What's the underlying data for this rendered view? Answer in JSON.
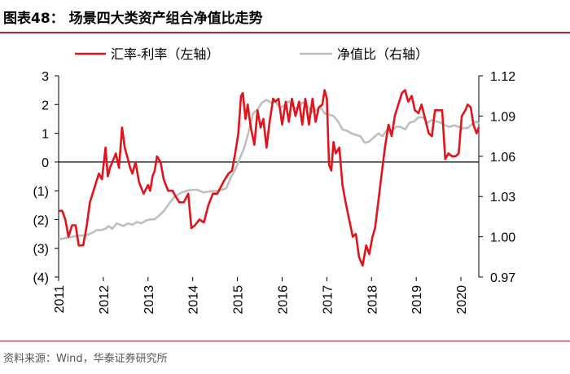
{
  "header": {
    "title": "图表48：  场景四大类资产组合净值比走势"
  },
  "footer": {
    "source": "资料来源：Wind，华泰证券研究所"
  },
  "colors": {
    "fx_series": "#e2131b",
    "nav_series": "#bfbfbf",
    "accent": "#b8232f"
  },
  "chart_data": {
    "type": "line",
    "title": "场景四大类资产组合净值比走势",
    "x_tick_labels": [
      "2011",
      "2012",
      "2013",
      "2014",
      "2015",
      "2016",
      "2017",
      "2018",
      "2019",
      "2020"
    ],
    "x_ticks": [
      2011,
      2012,
      2013,
      2014,
      2015,
      2016,
      2017,
      2018,
      2019,
      2020
    ],
    "xlim": [
      2011,
      2020.4
    ],
    "left_axis": {
      "ylim": [
        -4,
        3
      ],
      "ticks": [
        3,
        2,
        1,
        0,
        -1,
        -2,
        -3,
        -4
      ],
      "tick_labels": [
        "3",
        "2",
        "1",
        "0",
        "(1)",
        "(2)",
        "(3)",
        "(4)"
      ]
    },
    "right_axis": {
      "ylim": [
        0.97,
        1.12
      ],
      "ticks": [
        1.12,
        1.09,
        1.06,
        1.03,
        1.0,
        0.97
      ],
      "tick_labels": [
        "1.12",
        "1.09",
        "1.06",
        "1.03",
        "1.00",
        "0.97"
      ]
    },
    "series": [
      {
        "name": "汇率-利率（左轴）",
        "axis": "left",
        "x": [
          2011.0,
          2011.08,
          2011.15,
          2011.22,
          2011.3,
          2011.38,
          2011.45,
          2011.55,
          2011.63,
          2011.7,
          2011.8,
          2011.9,
          2011.97,
          2012.05,
          2012.1,
          2012.15,
          2012.2,
          2012.28,
          2012.35,
          2012.42,
          2012.48,
          2012.55,
          2012.6,
          2012.65,
          2012.72,
          2012.8,
          2012.9,
          2013.0,
          2013.05,
          2013.1,
          2013.15,
          2013.2,
          2013.28,
          2013.35,
          2013.45,
          2013.55,
          2013.62,
          2013.7,
          2013.8,
          2013.9,
          2013.97,
          2014.05,
          2014.15,
          2014.25,
          2014.35,
          2014.45,
          2014.55,
          2014.65,
          2014.72,
          2014.8,
          2014.88,
          2014.95,
          2015.02,
          2015.08,
          2015.12,
          2015.18,
          2015.23,
          2015.3,
          2015.38,
          2015.45,
          2015.52,
          2015.58,
          2015.65,
          2015.72,
          2015.8,
          2015.85,
          2015.92,
          2016.0,
          2016.08,
          2016.15,
          2016.22,
          2016.3,
          2016.38,
          2016.45,
          2016.52,
          2016.6,
          2016.68,
          2016.75,
          2016.82,
          2016.9,
          2016.95,
          2017.0,
          2017.05,
          2017.1,
          2017.15,
          2017.2,
          2017.28,
          2017.35,
          2017.42,
          2017.5,
          2017.58,
          2017.65,
          2017.72,
          2017.8,
          2017.88,
          2017.95,
          2018.02,
          2018.08,
          2018.15,
          2018.22,
          2018.3,
          2018.38,
          2018.45,
          2018.52,
          2018.6,
          2018.68,
          2018.75,
          2018.82,
          2018.9,
          2018.97,
          2019.05,
          2019.12,
          2019.2,
          2019.28,
          2019.35,
          2019.42,
          2019.5,
          2019.58,
          2019.65,
          2019.72,
          2019.8,
          2019.88,
          2019.95,
          2020.02,
          2020.1,
          2020.15,
          2020.22,
          2020.28,
          2020.35,
          2020.4
        ],
        "values": [
          -1.7,
          -1.7,
          -2.0,
          -2.6,
          -2.2,
          -2.2,
          -2.9,
          -2.9,
          -2.2,
          -1.4,
          -0.9,
          -0.4,
          -0.6,
          0.5,
          -0.5,
          -0.2,
          0.0,
          0.3,
          -0.2,
          1.2,
          0.5,
          0.1,
          -0.2,
          -0.4,
          0.0,
          -0.7,
          -1.1,
          -0.8,
          -1.0,
          -0.5,
          -0.3,
          0.2,
          0.0,
          -0.6,
          -1.0,
          -1.0,
          -1.2,
          -1.4,
          -1.4,
          -1.1,
          -2.3,
          -2.2,
          -2.0,
          -2.1,
          -1.5,
          -1.1,
          -1.1,
          -0.8,
          -0.6,
          -0.4,
          -0.3,
          0.3,
          1.0,
          2.3,
          2.4,
          1.5,
          2.0,
          1.2,
          0.6,
          1.8,
          1.2,
          1.5,
          0.5,
          1.4,
          2.2,
          2.1,
          2.2,
          1.3,
          2.1,
          1.4,
          2.2,
          1.6,
          2.1,
          1.3,
          2.2,
          1.3,
          2.2,
          1.4,
          1.9,
          2.0,
          2.5,
          2.2,
          -0.1,
          -0.3,
          0.7,
          0.3,
          0.5,
          -0.8,
          -1.4,
          -2.0,
          -2.6,
          -2.5,
          -3.3,
          -3.6,
          -2.9,
          -3.2,
          -2.6,
          -2.3,
          -1.4,
          -0.5,
          0.5,
          1.3,
          0.9,
          1.6,
          2.0,
          2.4,
          2.5,
          2.1,
          2.3,
          1.8,
          1.7,
          2.0,
          1.5,
          1.0,
          0.9,
          1.8,
          1.8,
          1.8,
          0.1,
          0.3,
          0.2,
          0.2,
          0.3,
          1.6,
          1.8,
          2.0,
          1.9,
          1.3,
          1.0,
          1.2
        ]
      },
      {
        "name": "净值比（右轴）",
        "axis": "right",
        "x": [
          2011.0,
          2011.15,
          2011.3,
          2011.45,
          2011.6,
          2011.75,
          2011.85,
          2011.95,
          2012.05,
          2012.12,
          2012.2,
          2012.3,
          2012.45,
          2012.55,
          2012.65,
          2012.75,
          2012.85,
          2012.95,
          2013.05,
          2013.15,
          2013.25,
          2013.35,
          2013.5,
          2013.6,
          2013.75,
          2013.85,
          2013.95,
          2014.1,
          2014.25,
          2014.4,
          2014.55,
          2014.65,
          2014.75,
          2014.85,
          2014.95,
          2015.05,
          2015.15,
          2015.25,
          2015.35,
          2015.45,
          2015.55,
          2015.65,
          2015.75,
          2015.85,
          2015.95,
          2016.05,
          2016.15,
          2016.25,
          2016.35,
          2016.45,
          2016.55,
          2016.65,
          2016.75,
          2016.85,
          2016.95,
          2017.05,
          2017.15,
          2017.25,
          2017.35,
          2017.45,
          2017.55,
          2017.65,
          2017.75,
          2017.85,
          2017.95,
          2018.05,
          2018.15,
          2018.25,
          2018.35,
          2018.45,
          2018.55,
          2018.65,
          2018.75,
          2018.85,
          2018.95,
          2019.05,
          2019.15,
          2019.25,
          2019.35,
          2019.45,
          2019.55,
          2019.65,
          2019.75,
          2019.85,
          2019.95,
          2020.05,
          2020.15,
          2020.25,
          2020.35,
          2020.4
        ],
        "values": [
          0.998,
          0.999,
          1.0,
          1.001,
          1.001,
          1.003,
          1.005,
          1.005,
          1.006,
          1.008,
          1.006,
          1.01,
          1.008,
          1.01,
          1.009,
          1.011,
          1.01,
          1.012,
          1.013,
          1.013,
          1.016,
          1.019,
          1.026,
          1.03,
          1.033,
          1.034,
          1.035,
          1.035,
          1.033,
          1.034,
          1.034,
          1.035,
          1.036,
          1.044,
          1.05,
          1.058,
          1.066,
          1.078,
          1.092,
          1.095,
          1.1,
          1.102,
          1.1,
          1.101,
          1.096,
          1.098,
          1.101,
          1.097,
          1.095,
          1.1,
          1.099,
          1.093,
          1.094,
          1.097,
          1.092,
          1.091,
          1.09,
          1.086,
          1.08,
          1.079,
          1.077,
          1.076,
          1.075,
          1.07,
          1.071,
          1.074,
          1.077,
          1.075,
          1.08,
          1.079,
          1.082,
          1.082,
          1.08,
          1.085,
          1.086,
          1.089,
          1.089,
          1.085,
          1.087,
          1.086,
          1.085,
          1.083,
          1.082,
          1.083,
          1.082,
          1.081,
          1.081,
          1.084,
          1.086,
          1.084
        ]
      }
    ]
  }
}
